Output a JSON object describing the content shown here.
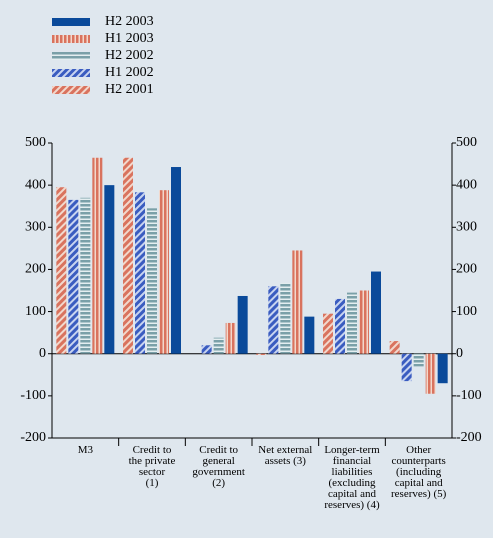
{
  "chart_data": {
    "type": "bar",
    "categories": [
      "M3",
      "Credit to\nthe private\nsector\n(1)",
      "Credit to\ngeneral\ngovernment\n(2)",
      "Net external\nassets (3)",
      "Longer-term\nfinancial\nliabilities\n(excluding\ncapital and\nreserves) (4)",
      "Other\ncounterparts\n(including\ncapital and\nreserves) (5)"
    ],
    "series": [
      {
        "name": "H2 2003",
        "color": "#0a4a9a",
        "values": [
          400,
          443,
          137,
          88,
          195,
          -70
        ]
      },
      {
        "name": "H1 2003",
        "color": "#d9735e",
        "values": [
          465,
          388,
          73,
          245,
          150,
          -95
        ]
      },
      {
        "name": "H2 2002",
        "color": "#7aa0a8",
        "values": [
          370,
          345,
          38,
          168,
          145,
          -30
        ]
      },
      {
        "name": "H1 2002",
        "color": "#3a5cc0",
        "values": [
          365,
          383,
          20,
          160,
          130,
          -65
        ]
      },
      {
        "name": "H2 2001",
        "color": "#d9735e",
        "values": [
          395,
          465,
          0,
          -3,
          95,
          30
        ]
      }
    ],
    "ylim": [
      -200,
      500
    ],
    "yticks": [
      -200,
      -100,
      0,
      100,
      200,
      300,
      400,
      500
    ],
    "y2lim": [
      -200,
      500
    ],
    "y2ticks": [
      -200,
      -100,
      0,
      100,
      200,
      300,
      400,
      500
    ]
  }
}
